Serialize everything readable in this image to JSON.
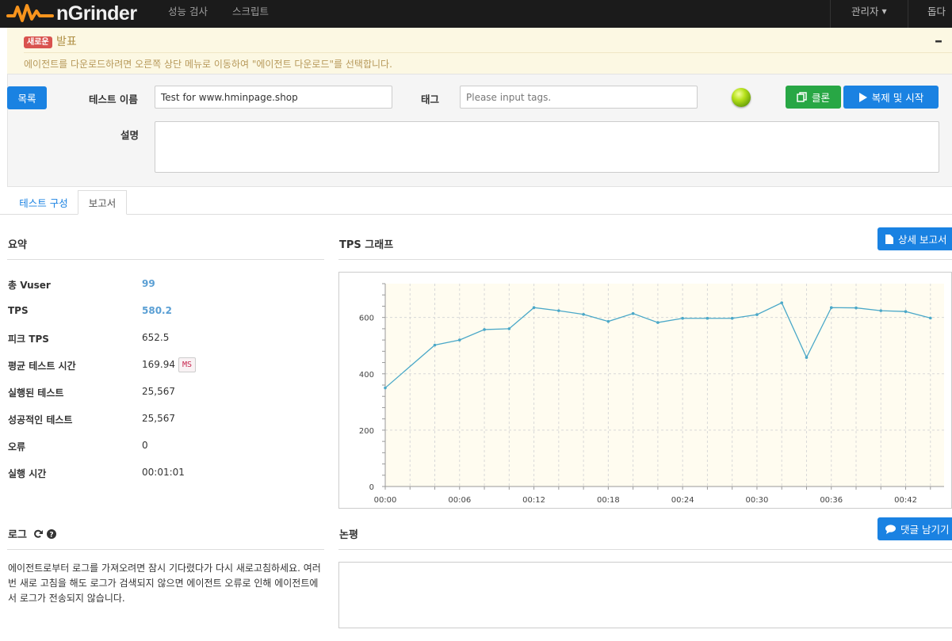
{
  "navbar": {
    "brand": "nGrinder",
    "items": [
      "성능 검사",
      "스크립트"
    ],
    "admin_menu": "관리자",
    "help": "돕다"
  },
  "notice": {
    "badge": "새로운",
    "title": "발표",
    "body": "에이전트를 다운로드하려면 오른쪽 상단 메뉴로 이동하여 \"에이전트 다운로드\"를 선택합니다."
  },
  "form": {
    "list_button": "목록",
    "test_name_label": "테스트 이름",
    "test_name_value": "Test for www.hminpage.shop",
    "tag_label": "태그",
    "tag_placeholder": "Please input tags.",
    "clone_button": "클론",
    "clone_start_button": "복제 및 시작",
    "description_label": "설명",
    "description_value": ""
  },
  "tabs": [
    {
      "label": "테스트 구성",
      "active": false
    },
    {
      "label": "보고서",
      "active": true
    }
  ],
  "summary": {
    "title": "요약",
    "rows": [
      {
        "label": "총 Vuser",
        "value": "99"
      },
      {
        "label": "TPS",
        "value": "580.2"
      },
      {
        "label": "피크 TPS",
        "value": "652.5"
      },
      {
        "label": "평균 테스트 시간",
        "value": "169.94",
        "unit": "MS"
      },
      {
        "label": "실행된 테스트",
        "value": "25,567"
      },
      {
        "label": "성공적인 테스트",
        "value": "25,567"
      },
      {
        "label": "오류",
        "value": "0"
      },
      {
        "label": "실행 시간",
        "value": "00:01:01"
      }
    ]
  },
  "tps": {
    "title": "TPS 그래프",
    "detail_button": "상세 보고서"
  },
  "log": {
    "title": "로그",
    "text": "에이전트로부터 로그를 가져오려면 잠시 기다렸다가 다시 새로고침하세요. 여러 번 새로 고침을 해도 로그가 검색되지 않으면 에이전트 오류로 인해 에이전트에서 로그가 전송되지 않습니다."
  },
  "comment": {
    "title": "논평",
    "button": "댓글 남기기"
  },
  "colors": {
    "primary": "#1a82e2",
    "success": "#28a745",
    "line": "#4aa8c8",
    "plot_bg": "#fffcf0"
  },
  "chart_data": {
    "type": "line",
    "title": "",
    "xlabel": "",
    "ylabel": "",
    "x_ticks": [
      "00:00",
      "00:06",
      "00:12",
      "00:18",
      "00:24",
      "00:30",
      "00:36",
      "00:42"
    ],
    "y_ticks": [
      0,
      200,
      400,
      600
    ],
    "ylim": [
      0,
      720
    ],
    "xlim_seconds": [
      0,
      2640
    ],
    "grid": true,
    "series": [
      {
        "name": "",
        "x_seconds": [
          0,
          240,
          360,
          480,
          600,
          720,
          840,
          960,
          1080,
          1200,
          1320,
          1440,
          1560,
          1680,
          1800,
          1920,
          2040,
          2160,
          2280,
          2400,
          2520,
          2640
        ],
        "values": [
          350,
          502,
          520,
          557,
          560,
          635,
          624,
          611,
          586,
          614,
          582,
          597,
          597,
          597,
          610,
          652,
          458,
          635,
          634,
          624,
          621,
          598
        ]
      }
    ]
  }
}
